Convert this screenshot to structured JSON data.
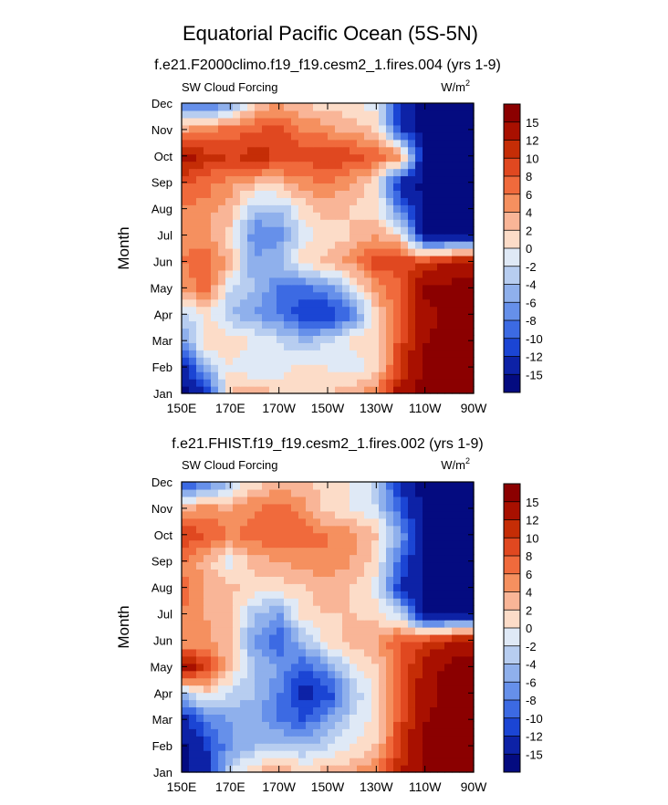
{
  "figure": {
    "title": "Equatorial Pacific Ocean (5S-5N)"
  },
  "chart_data": [
    {
      "type": "heatmap",
      "subtitle": "f.e21.F2000climo.f19_f19.cesm2_1.fires.004 (yrs 1-9)",
      "left_label": "SW Cloud Forcing",
      "units_base": "W/m",
      "units_exp": "2",
      "ylabel": "Month",
      "xlabel": "",
      "x_ticks": [
        "150E",
        "170E",
        "170W",
        "150W",
        "130W",
        "110W",
        "90W"
      ],
      "x_values": [
        150,
        170,
        190,
        210,
        230,
        250,
        270
      ],
      "y_ticks": [
        "Jan",
        "Feb",
        "Mar",
        "Apr",
        "May",
        "Jun",
        "Jul",
        "Aug",
        "Sep",
        "Oct",
        "Nov",
        "Dec"
      ],
      "colorbar_labels": [
        "15",
        "12",
        "10",
        "8",
        "6",
        "4",
        "2",
        "0",
        "-2",
        "-4",
        "-6",
        "-8",
        "-10",
        "-12",
        "-15"
      ],
      "value_range": [
        -16,
        16
      ],
      "grid": false,
      "legend_position": "right",
      "values": [
        [
          -16,
          -12,
          2,
          4,
          2,
          1,
          2,
          4,
          6,
          14,
          16,
          16,
          16
        ],
        [
          -16,
          -4,
          0,
          -2,
          -1,
          1,
          0,
          -2,
          1,
          10,
          16,
          16,
          16
        ],
        [
          -6,
          2,
          1,
          0,
          -2,
          -4,
          -2,
          1,
          2,
          9,
          15,
          16,
          16
        ],
        [
          -4,
          1,
          -4,
          -6,
          -8,
          -12,
          -13,
          -8,
          1,
          9,
          14,
          16,
          16
        ],
        [
          4,
          7,
          -2,
          -4,
          -8,
          -9,
          -7,
          -2,
          5,
          8,
          16,
          16,
          16
        ],
        [
          6,
          8,
          3,
          -6,
          -4,
          1,
          3,
          5,
          9,
          9,
          10,
          12,
          14
        ],
        [
          5,
          4,
          1,
          -8,
          -7,
          -1,
          1,
          2,
          4,
          1,
          -16,
          -16,
          -16
        ],
        [
          6,
          5,
          3,
          -4,
          -4,
          1,
          3,
          2,
          1,
          -8,
          -16,
          -16,
          -16
        ],
        [
          8,
          7,
          5,
          3,
          3,
          5,
          6,
          4,
          0,
          -14,
          -16,
          -16,
          -16
        ],
        [
          14,
          11,
          10,
          11,
          10,
          9,
          10,
          9,
          8,
          6,
          -16,
          -16,
          -16
        ],
        [
          4,
          6,
          7,
          8,
          9,
          6,
          5,
          3,
          2,
          -12,
          -16,
          -16,
          -16
        ],
        [
          -8,
          -10,
          -6,
          2,
          4,
          2,
          1,
          0,
          -1,
          -14,
          -16,
          -16,
          -16
        ]
      ]
    },
    {
      "type": "heatmap",
      "subtitle": "f.e21.FHIST.f19_f19.cesm2_1.fires.002 (yrs 1-9)",
      "left_label": "SW Cloud Forcing",
      "units_base": "W/m",
      "units_exp": "2",
      "ylabel": "Month",
      "xlabel": "",
      "x_ticks": [
        "150E",
        "170E",
        "170W",
        "150W",
        "130W",
        "110W",
        "90W"
      ],
      "x_values": [
        150,
        170,
        190,
        210,
        230,
        250,
        270
      ],
      "y_ticks": [
        "Jan",
        "Feb",
        "Mar",
        "Apr",
        "May",
        "Jun",
        "Jul",
        "Aug",
        "Sep",
        "Oct",
        "Nov",
        "Dec"
      ],
      "colorbar_labels": [
        "15",
        "12",
        "10",
        "8",
        "6",
        "4",
        "2",
        "0",
        "-2",
        "-4",
        "-6",
        "-8",
        "-10",
        "-12",
        "-15"
      ],
      "value_range": [
        -16,
        16
      ],
      "grid": false,
      "legend_position": "right",
      "values": [
        [
          -16,
          -14,
          -2,
          2,
          4,
          2,
          3,
          4,
          6,
          12,
          16,
          16,
          16
        ],
        [
          -16,
          -12,
          -6,
          -4,
          -3,
          -4,
          -2,
          0,
          2,
          10,
          16,
          16,
          16
        ],
        [
          -14,
          -8,
          -6,
          -5,
          -8,
          -10,
          -6,
          -2,
          1,
          9,
          15,
          16,
          16
        ],
        [
          -4,
          1,
          -2,
          -4,
          -8,
          -13,
          -12,
          -4,
          1,
          8,
          14,
          16,
          16
        ],
        [
          14,
          10,
          2,
          -4,
          -6,
          -10,
          -6,
          -1,
          2,
          8,
          13,
          16,
          16
        ],
        [
          4,
          5,
          2,
          -6,
          -10,
          -4,
          1,
          3,
          4,
          8,
          10,
          12,
          14
        ],
        [
          6,
          4,
          2,
          -4,
          -6,
          1,
          2,
          2,
          1,
          -2,
          -16,
          -16,
          -16
        ],
        [
          7,
          4,
          3,
          1,
          1,
          2,
          3,
          2,
          -1,
          -12,
          -16,
          -16,
          -16
        ],
        [
          6,
          3,
          -1,
          3,
          4,
          5,
          6,
          4,
          1,
          -10,
          -16,
          -16,
          -16
        ],
        [
          10,
          8,
          6,
          7,
          8,
          7,
          6,
          5,
          2,
          -6,
          -16,
          -16,
          -16
        ],
        [
          4,
          5,
          4,
          6,
          7,
          5,
          1,
          0,
          -2,
          -10,
          -16,
          -16,
          -16
        ],
        [
          -10,
          -10,
          -3,
          1,
          3,
          2,
          1,
          0,
          -3,
          -14,
          -16,
          -16,
          -16
        ]
      ]
    }
  ]
}
